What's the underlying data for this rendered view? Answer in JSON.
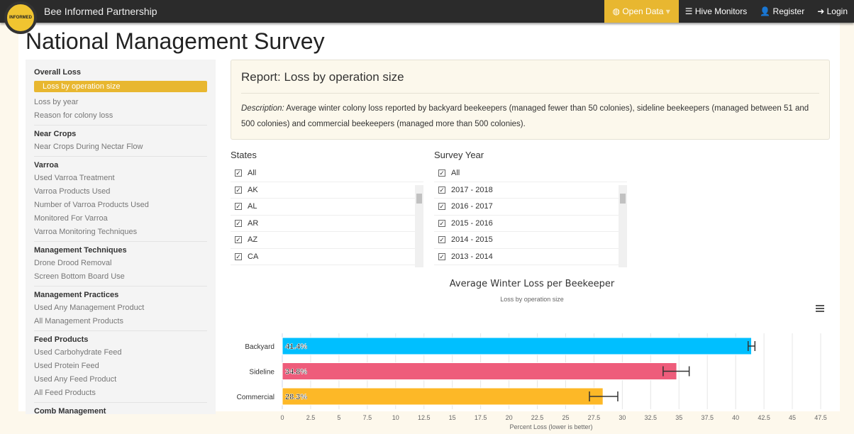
{
  "nav": {
    "brand": "Bee Informed Partnership",
    "logo_text": "INFORMED",
    "items": [
      {
        "label": "Open Data",
        "icon": "globe-icon",
        "active": true
      },
      {
        "label": "Hive Monitors",
        "icon": "server-icon"
      },
      {
        "label": "Register",
        "icon": "user-plus-icon"
      },
      {
        "label": "Login",
        "icon": "sign-in-icon"
      }
    ]
  },
  "page_title": "National Management Survey",
  "sidebar": {
    "groups": [
      {
        "title": "Overall Loss",
        "items": [
          "Loss by operation size",
          "Loss by year",
          "Reason for colony loss"
        ],
        "selected": 0
      },
      {
        "title": "Near Crops",
        "items": [
          "Near Crops During Nectar Flow"
        ]
      },
      {
        "title": "Varroa",
        "items": [
          "Used Varroa Treatment",
          "Varroa Products Used",
          "Number of Varroa Products Used",
          "Monitored For Varroa",
          "Varroa Monitoring Techniques"
        ]
      },
      {
        "title": "Management Techniques",
        "items": [
          "Drone Drood Removal",
          "Screen Bottom Board Use"
        ]
      },
      {
        "title": "Management Practices",
        "items": [
          "Used Any Management Product",
          "All Management Products"
        ]
      },
      {
        "title": "Feed Products",
        "items": [
          "Used Carbohydrate Feed",
          "Used Protein Feed",
          "Used Any Feed Product",
          "All Feed Products"
        ]
      },
      {
        "title": "Comb Management",
        "items": []
      }
    ]
  },
  "report": {
    "title": "Report: Loss by operation size",
    "desc_label": "Description:",
    "desc": " Average winter colony loss reported by backyard beekeepers (managed fewer than 50 colonies), sideline beekeepers (managed between 51 and 500 colonies) and commercial beekeepers (managed more than 500 colonies)."
  },
  "filters": {
    "states": {
      "label": "States",
      "items": [
        "All",
        "AK",
        "AL",
        "AR",
        "AZ",
        "CA"
      ]
    },
    "years": {
      "label": "Survey Year",
      "items": [
        "All",
        "2017 - 2018",
        "2016 - 2017",
        "2015 - 2016",
        "2014 - 2015",
        "2013 - 2014"
      ]
    }
  },
  "chart_data": {
    "type": "bar",
    "orientation": "horizontal",
    "title": "Average Winter Loss per Beekeeper",
    "subtitle": "Loss by operation size",
    "xlabel": "Percent Loss (lower is better)",
    "categories": [
      "Backyard",
      "Sideline",
      "Commercial"
    ],
    "values": [
      41.4,
      34.8,
      28.3
    ],
    "data_labels": [
      "41.4%",
      "34.8%",
      "28.3%"
    ],
    "error_bars": [
      [
        41.1,
        41.7
      ],
      [
        33.6,
        35.9
      ],
      [
        27.1,
        29.6
      ]
    ],
    "colors": [
      "#00bfff",
      "#ee5c7b",
      "#fdb827"
    ],
    "xlim": [
      0,
      47.5
    ],
    "ticks": [
      "0",
      "2.5",
      "5",
      "7.5",
      "10",
      "12.5",
      "15",
      "17.5",
      "20",
      "22.5",
      "25",
      "27.5",
      "30",
      "32.5",
      "35",
      "37.5",
      "40",
      "42.5",
      "45",
      "47.5"
    ],
    "grid": true,
    "menu_icon": "hamburger-icon"
  }
}
